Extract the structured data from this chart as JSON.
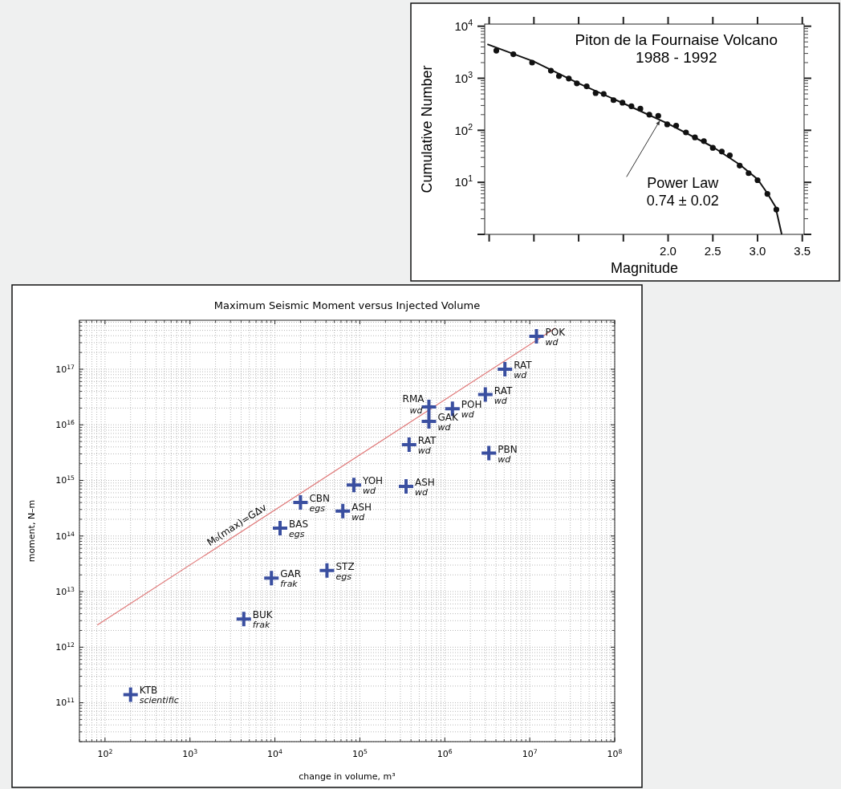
{
  "chart_data": [
    {
      "type": "scatter",
      "title": "Piton de la Fournaise Volcano",
      "subtitle": "1988 - 1992",
      "xlabel": "Magnitude",
      "ylabel": "Cumulative Number",
      "log": "y",
      "grid": false,
      "xlim": [
        -0.05,
        3.52
      ],
      "ylim": [
        1,
        11000
      ],
      "xticks": [
        {
          "value": 0,
          "label": null
        },
        {
          "value": 0.5,
          "label": null
        },
        {
          "value": 1,
          "label": null
        },
        {
          "value": 1.5,
          "label": null
        },
        {
          "value": 2,
          "label": "2.0"
        },
        {
          "value": 2.5,
          "label": "2.5"
        },
        {
          "value": 3,
          "label": "3.0"
        },
        {
          "value": 3.5,
          "label": "3.5"
        }
      ],
      "yticks": [
        {
          "value": 1,
          "label": null
        },
        {
          "value": 10,
          "label": "10$^{1}$"
        },
        {
          "value": 100,
          "label": "10$^{2}$"
        },
        {
          "value": 1000,
          "label": "10$^{3}$"
        },
        {
          "value": 10000,
          "label": "10$^{4}$"
        }
      ],
      "series": [
        {
          "marker": "circle",
          "color": "#111111",
          "x": [
            0.08,
            0.27,
            0.48,
            0.69,
            0.78,
            0.89,
            0.98,
            1.09,
            1.19,
            1.28,
            1.39,
            1.49,
            1.59,
            1.69,
            1.79,
            1.89,
            1.99,
            2.09,
            2.2,
            2.3,
            2.4,
            2.5,
            2.6,
            2.69,
            2.8,
            2.9,
            3.0,
            3.11,
            3.21
          ],
          "values": [
            3400,
            2900,
            2000,
            1400,
            1100,
            990,
            800,
            700,
            520,
            500,
            380,
            340,
            290,
            260,
            200,
            190,
            130,
            123,
            91,
            73,
            62,
            46,
            39,
            33,
            21,
            15,
            11,
            6,
            3
          ]
        },
        {
          "type": "line",
          "color": "#111111",
          "x": [
            -0.02,
            0.5,
            1.0,
            1.5,
            2.0,
            2.5,
            2.8,
            3.0,
            3.1,
            3.2,
            3.27
          ],
          "values": [
            4500,
            2100,
            800,
            330,
            134,
            48,
            22,
            11.5,
            6.5,
            3.4,
            1
          ]
        }
      ],
      "annotations": [
        "Power Law",
        "0.74 ± 0.02"
      ]
    },
    {
      "type": "scatter",
      "title": "Maximum Seismic Moment versus Injected Volume",
      "xlabel": "change in volume, m³",
      "ylabel": "moment, N–m",
      "log": "xy",
      "grid": true,
      "xlim": [
        50,
        100000000
      ],
      "ylim": [
        20000000000,
        760000000000000000
      ],
      "xticks": [
        {
          "value": 100,
          "label": "10$^{2}$"
        },
        {
          "value": 1000,
          "label": "10$^{3}$"
        },
        {
          "value": 10000,
          "label": "10$^{4}$"
        },
        {
          "value": 100000,
          "label": "10$^{5}$"
        },
        {
          "value": 1000000,
          "label": "10$^{6}$"
        },
        {
          "value": 10000000,
          "label": "10$^{7}$"
        },
        {
          "value": 100000000,
          "label": "10$^{8}$"
        }
      ],
      "yticks": [
        {
          "value": 100000000000.0,
          "label": "10$^{11}$"
        },
        {
          "value": 1000000000000.0,
          "label": "10$^{12}$"
        },
        {
          "value": 10000000000000.0,
          "label": "10$^{13}$"
        },
        {
          "value": 100000000000000.0,
          "label": "10$^{14}$"
        },
        {
          "value": 1000000000000000.0,
          "label": "10$^{15}$"
        },
        {
          "value": 1e+16,
          "label": "10$^{16}$"
        },
        {
          "value": 1e+17,
          "label": "10$^{17}$"
        }
      ],
      "series": [
        {
          "marker": "cross",
          "color": "#3a4fa0",
          "x": [
            12000000,
            5100000,
            3000000,
            650000,
            1230000,
            650000,
            380000,
            3300000,
            85000,
            350000,
            20000,
            63000,
            11500,
            41000,
            9100,
            4300,
            200
          ],
          "values": [
            3.9e+17,
            1e+17,
            3.5e+16,
            2.1e+16,
            1.95e+16,
            1.15e+16,
            4400000000000000.0,
            3100000000000000.0,
            830000000000000.0,
            780000000000000.0,
            400000000000000.0,
            280000000000000.0,
            138000000000000.0,
            24000000000000.0,
            17500000000000.0,
            3200000000000.0,
            140000000000.0
          ]
        },
        {
          "type": "line",
          "color": "#e07a7a",
          "x": [
            81,
            20000000
          ],
          "values": [
            2500000000000.0,
            5.5e+17
          ]
        }
      ],
      "annotations": [
        {
          "text": "POK",
          "x": 12000000,
          "y": 3.9e+17
        },
        {
          "text": "wd",
          "x": 12000000,
          "y": 3.9e+17
        },
        {
          "text": "RAT",
          "x": 5100000,
          "y": 1e+17
        },
        {
          "text": "wd",
          "x": 5100000,
          "y": 1e+17
        },
        {
          "text": "RAT",
          "x": 3000000,
          "y": 3.5e+16
        },
        {
          "text": "wd",
          "x": 3000000,
          "y": 3.5e+16
        },
        {
          "text": "RMA",
          "x": 650000,
          "y": 2.1e+16
        },
        {
          "text": "wd",
          "x": 650000,
          "y": 2.1e+16
        },
        {
          "text": "POH",
          "x": 1230000,
          "y": 1.95e+16
        },
        {
          "text": "wd",
          "x": 1230000,
          "y": 1.95e+16
        },
        {
          "text": "GAK",
          "x": 650000,
          "y": 1.15e+16
        },
        {
          "text": "wd",
          "x": 650000,
          "y": 1.15e+16
        },
        {
          "text": "RAT",
          "x": 380000,
          "y": 4400000000000000.0
        },
        {
          "text": "wd",
          "x": 380000,
          "y": 4400000000000000.0
        },
        {
          "text": "PBN",
          "x": 3300000,
          "y": 3100000000000000.0
        },
        {
          "text": "wd",
          "x": 3300000,
          "y": 3100000000000000.0
        },
        {
          "text": "YOH",
          "x": 85000,
          "y": 830000000000000.0
        },
        {
          "text": "wd",
          "x": 85000,
          "y": 830000000000000.0
        },
        {
          "text": "ASH",
          "x": 350000,
          "y": 780000000000000.0
        },
        {
          "text": "wd",
          "x": 350000,
          "y": 780000000000000.0
        },
        {
          "text": "CBN",
          "x": 20000,
          "y": 400000000000000.0
        },
        {
          "text": "egs",
          "x": 20000,
          "y": 400000000000000.0
        },
        {
          "text": "ASH",
          "x": 63000,
          "y": 280000000000000.0
        },
        {
          "text": "wd",
          "x": 63000,
          "y": 280000000000000.0
        },
        {
          "text": "BAS",
          "x": 11500,
          "y": 138000000000000.0
        },
        {
          "text": "egs",
          "x": 11500,
          "y": 138000000000000.0
        },
        {
          "text": "STZ",
          "x": 41000,
          "y": 24000000000000.0
        },
        {
          "text": "egs",
          "x": 41000,
          "y": 24000000000000.0
        },
        {
          "text": "GAR",
          "x": 9100,
          "y": 17500000000000.0
        },
        {
          "text": "frak",
          "x": 9100,
          "y": 17500000000000.0
        },
        {
          "text": "BUK",
          "x": 4300,
          "y": 3200000000000.0
        },
        {
          "text": "frak",
          "x": 4300,
          "y": 3200000000000.0
        },
        {
          "text": "KTB",
          "x": 200,
          "y": 140000000000.0
        },
        {
          "text": "scientific",
          "x": 200,
          "y": 140000000000.0
        },
        {
          "text": "M₀(max)=GΔv",
          "x": 4000,
          "y": 120000000000000.0
        }
      ]
    }
  ]
}
